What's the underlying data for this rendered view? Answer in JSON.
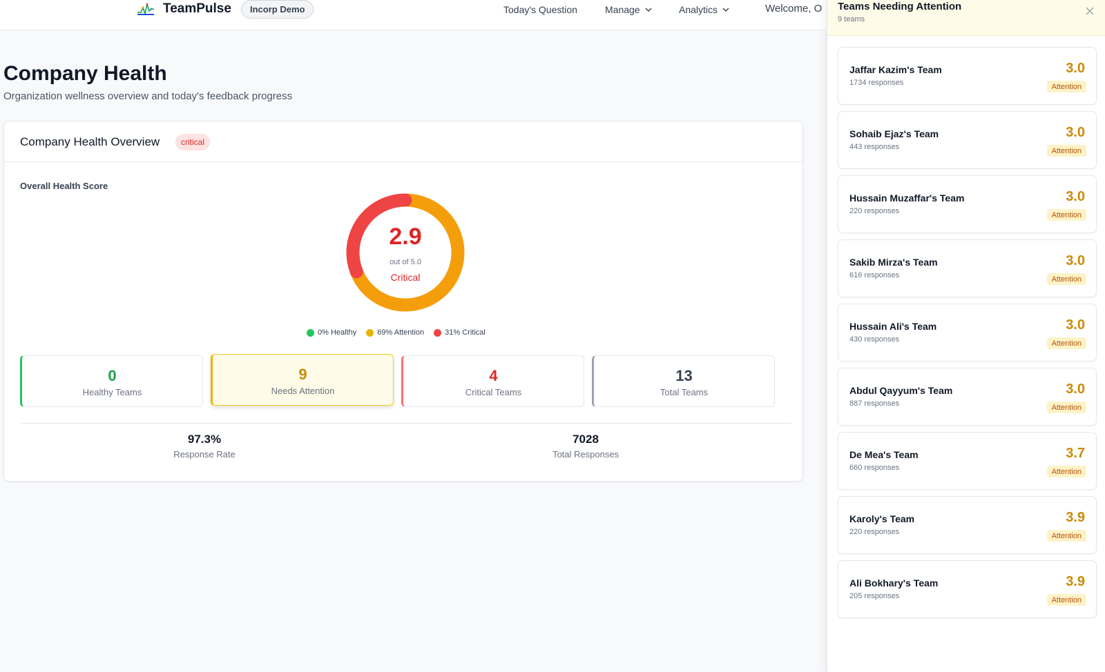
{
  "header": {
    "app_name": "TeamPulse",
    "org_name": "Incorp Demo",
    "nav": {
      "todays_question": "Today's Question",
      "manage": "Manage",
      "analytics": "Analytics"
    },
    "welcome": "Welcome, O"
  },
  "page": {
    "title": "Company Health",
    "subtitle": "Organization wellness overview and today's feedback progress"
  },
  "overview": {
    "title": "Company Health Overview",
    "status_badge": "critical",
    "score_label": "Overall Health Score",
    "score": "2.9",
    "out_of": "out of 5.0",
    "score_status": "Critical",
    "distribution": {
      "healthy_pct": 0,
      "attention_pct": 69,
      "critical_pct": 31
    },
    "legend": {
      "healthy": "0% Healthy",
      "attention": "69% Attention",
      "critical": "31% Critical"
    },
    "stats": {
      "healthy": {
        "value": "0",
        "label": "Healthy Teams"
      },
      "attention": {
        "value": "9",
        "label": "Needs Attention"
      },
      "critical": {
        "value": "4",
        "label": "Critical Teams"
      },
      "total": {
        "value": "13",
        "label": "Total Teams"
      }
    },
    "metrics": {
      "response_rate": {
        "value": "97.3%",
        "label": "Response Rate"
      },
      "total_responses": {
        "value": "7028",
        "label": "Total Responses"
      }
    }
  },
  "drawer": {
    "title": "Teams Needing Attention",
    "count": "9 teams",
    "teams": [
      {
        "name": "Jaffar Kazim's Team",
        "responses": "1734 responses",
        "score": "3.0",
        "badge": "Attention"
      },
      {
        "name": "Sohaib Ejaz's Team",
        "responses": "443 responses",
        "score": "3.0",
        "badge": "Attention"
      },
      {
        "name": "Hussain Muzaffar's Team",
        "responses": "220 responses",
        "score": "3.0",
        "badge": "Attention"
      },
      {
        "name": "Sakib Mirza's Team",
        "responses": "616 responses",
        "score": "3.0",
        "badge": "Attention"
      },
      {
        "name": "Hussain Ali's Team",
        "responses": "430 responses",
        "score": "3.0",
        "badge": "Attention"
      },
      {
        "name": "Abdul Qayyum's Team",
        "responses": "887 responses",
        "score": "3.0",
        "badge": "Attention"
      },
      {
        "name": "De Mea's Team",
        "responses": "660 responses",
        "score": "3.7",
        "badge": "Attention"
      },
      {
        "name": "Karoly's Team",
        "responses": "220 responses",
        "score": "3.9",
        "badge": "Attention"
      },
      {
        "name": "Ali Bokhary's Team",
        "responses": "205 responses",
        "score": "3.9",
        "badge": "Attention"
      }
    ]
  },
  "colors": {
    "healthy": "#22c55e",
    "attention": "#f59e0b",
    "critical": "#ef4444",
    "critical_text": "#dc2626"
  },
  "icons": {
    "logo": "teampulse-logo",
    "manage_chevron": "chevron-down-icon",
    "analytics_chevron": "chevron-down-icon",
    "close": "close-icon"
  }
}
